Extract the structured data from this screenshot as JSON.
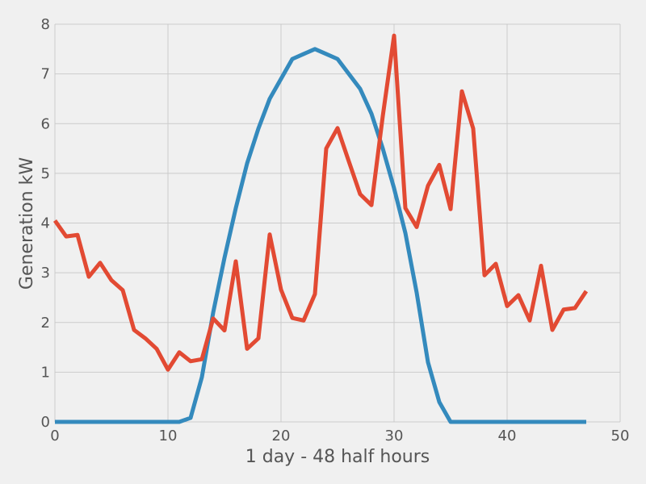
{
  "chart_data": {
    "type": "line",
    "title": "",
    "xlabel": "1 day - 48 half hours",
    "ylabel": "Generation kW",
    "xlim": [
      0,
      50
    ],
    "ylim": [
      0,
      8
    ],
    "xticks": [
      0,
      10,
      20,
      30,
      40,
      50
    ],
    "yticks": [
      0,
      1,
      2,
      3,
      4,
      5,
      6,
      7,
      8
    ],
    "grid": true,
    "legend": "none",
    "x": [
      0,
      1,
      2,
      3,
      4,
      5,
      6,
      7,
      8,
      9,
      10,
      11,
      12,
      13,
      14,
      15,
      16,
      17,
      18,
      19,
      20,
      21,
      22,
      23,
      24,
      25,
      26,
      27,
      28,
      29,
      30,
      31,
      32,
      33,
      34,
      35,
      36,
      37,
      38,
      39,
      40,
      41,
      42,
      43,
      44,
      45,
      46,
      47
    ],
    "series": [
      {
        "color": "#348ABD",
        "values": [
          0,
          0,
          0,
          0,
          0,
          0,
          0,
          0,
          0,
          0,
          0,
          0,
          0.08,
          0.9,
          2.2,
          3.3,
          4.3,
          5.2,
          5.9,
          6.5,
          6.9,
          7.3,
          7.4,
          7.5,
          7.4,
          7.3,
          7.0,
          6.7,
          6.2,
          5.5,
          4.7,
          3.8,
          2.6,
          1.2,
          0.4,
          0,
          0,
          0,
          0,
          0,
          0,
          0,
          0,
          0,
          0,
          0,
          0,
          0
        ]
      },
      {
        "color": "#E24A33",
        "values": [
          4.05,
          3.73,
          3.76,
          2.92,
          3.2,
          2.85,
          2.65,
          1.85,
          1.68,
          1.47,
          1.05,
          1.4,
          1.22,
          1.26,
          2.08,
          1.84,
          3.23,
          1.47,
          1.68,
          3.77,
          2.66,
          2.09,
          2.04,
          2.57,
          5.5,
          5.91,
          5.24,
          4.58,
          4.36,
          6.15,
          7.77,
          4.3,
          3.92,
          4.75,
          5.17,
          4.28,
          6.65,
          5.9,
          2.95,
          3.18,
          2.33,
          2.55,
          2.04,
          3.14,
          1.85,
          2.26,
          2.29,
          2.63
        ]
      }
    ]
  }
}
